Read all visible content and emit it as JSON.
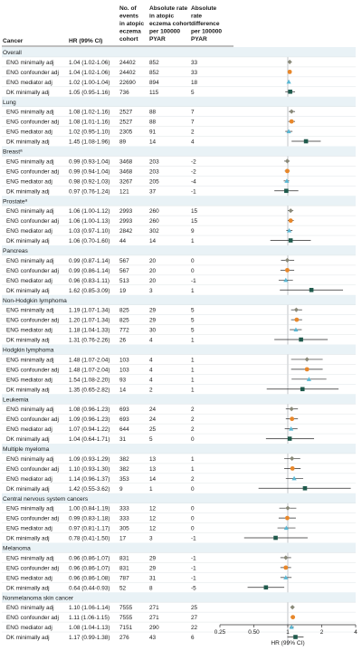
{
  "chart_data": {
    "type": "forest",
    "title": "",
    "xlabel": "HR (99% CI)",
    "x_scale": "log2",
    "xlim": [
      0.25,
      4
    ],
    "x_ticks": [
      "0.25",
      "0.50",
      "1",
      "2",
      "4"
    ],
    "reference_line": 1,
    "columns": {
      "cancer": "Cancer",
      "hr": "HR (99% CI)",
      "events": "No. of events in atopic eczema cohort",
      "rate": "Absolute rate in atopic eczema cohort per 100000 PYAR",
      "diff": "Absolute rate difference per 100000 PYAR"
    },
    "marker_colors": {
      "ENG minimally adj": "#8a8a7a",
      "ENG confounder adj": "#e8872a",
      "ENG mediator adj": "#5ab8d4",
      "DK minimally adj": "#1f5a4c"
    },
    "groups": [
      {
        "name": "Overall",
        "rows": [
          {
            "label": "ENG minimally adj",
            "hr": 1.04,
            "lo": 1.02,
            "hi": 1.06,
            "text": "1.04 (1.02-1.06)",
            "events": "24402",
            "rate": "852",
            "diff": "33"
          },
          {
            "label": "ENG confounder adj",
            "hr": 1.04,
            "lo": 1.02,
            "hi": 1.06,
            "text": "1.04 (1.02-1.06)",
            "events": "24402",
            "rate": "852",
            "diff": "33"
          },
          {
            "label": "ENG mediator adj",
            "hr": 1.02,
            "lo": 1.0,
            "hi": 1.04,
            "text": "1.02 (1.00-1.04)",
            "events": "22690",
            "rate": "894",
            "diff": "18"
          },
          {
            "label": "DK minimally adj",
            "hr": 1.05,
            "lo": 0.95,
            "hi": 1.16,
            "text": "1.05 (0.95-1.16)",
            "events": "736",
            "rate": "115",
            "diff": "5"
          }
        ]
      },
      {
        "name": "Lung",
        "rows": [
          {
            "label": "ENG minimally adj",
            "hr": 1.08,
            "lo": 1.02,
            "hi": 1.16,
            "text": "1.08 (1.02-1.16)",
            "events": "2527",
            "rate": "88",
            "diff": "7"
          },
          {
            "label": "ENG confounder adj",
            "hr": 1.08,
            "lo": 1.01,
            "hi": 1.16,
            "text": "1.08 (1.01-1.16)",
            "events": "2527",
            "rate": "88",
            "diff": "7"
          },
          {
            "label": "ENG mediator adj",
            "hr": 1.02,
            "lo": 0.95,
            "hi": 1.1,
            "text": "1.02 (0.95-1.10)",
            "events": "2305",
            "rate": "91",
            "diff": "2"
          },
          {
            "label": "DK minimally adj",
            "hr": 1.45,
            "lo": 1.08,
            "hi": 1.96,
            "text": "1.45 (1.08-1.96)",
            "events": "89",
            "rate": "14",
            "diff": "4"
          }
        ]
      },
      {
        "name": "Breast",
        "sup": "a",
        "rows": [
          {
            "label": "ENG minimally adj",
            "hr": 0.99,
            "lo": 0.93,
            "hi": 1.04,
            "text": "0.99 (0.93-1.04)",
            "events": "3468",
            "rate": "203",
            "diff": "-2"
          },
          {
            "label": "ENG confounder adj",
            "hr": 0.99,
            "lo": 0.94,
            "hi": 1.04,
            "text": "0.99 (0.94-1.04)",
            "events": "3468",
            "rate": "203",
            "diff": "-2"
          },
          {
            "label": "ENG mediator adj",
            "hr": 0.98,
            "lo": 0.92,
            "hi": 1.03,
            "text": "0.98 (0.92-1.03)",
            "events": "3267",
            "rate": "205",
            "diff": "-4"
          },
          {
            "label": "DK minimally adj",
            "hr": 0.97,
            "lo": 0.76,
            "hi": 1.24,
            "text": "0.97 (0.76-1.24)",
            "events": "121",
            "rate": "37",
            "diff": "-1"
          }
        ]
      },
      {
        "name": "Prostate",
        "sup": "a",
        "rows": [
          {
            "label": "ENG minimally adj",
            "hr": 1.06,
            "lo": 1.0,
            "hi": 1.12,
            "text": "1.06 (1.00-1.12)",
            "events": "2993",
            "rate": "260",
            "diff": "15"
          },
          {
            "label": "ENG confounder adj",
            "hr": 1.06,
            "lo": 1.0,
            "hi": 1.13,
            "text": "1.06 (1.00-1.13)",
            "events": "2993",
            "rate": "260",
            "diff": "15"
          },
          {
            "label": "ENG mediator adj",
            "hr": 1.03,
            "lo": 0.97,
            "hi": 1.1,
            "text": "1.03 (0.97-1.10)",
            "events": "2842",
            "rate": "302",
            "diff": "9"
          },
          {
            "label": "DK minimally adj",
            "hr": 1.06,
            "lo": 0.7,
            "hi": 1.6,
            "text": "1.06 (0.70-1.60)",
            "events": "44",
            "rate": "14",
            "diff": "1"
          }
        ]
      },
      {
        "name": "Pancreas",
        "rows": [
          {
            "label": "ENG minimally adj",
            "hr": 0.99,
            "lo": 0.87,
            "hi": 1.14,
            "text": "0.99 (0.87-1.14)",
            "events": "567",
            "rate": "20",
            "diff": "0"
          },
          {
            "label": "ENG confounder adj",
            "hr": 0.99,
            "lo": 0.86,
            "hi": 1.14,
            "text": "0.99 (0.86-1.14)",
            "events": "567",
            "rate": "20",
            "diff": "0"
          },
          {
            "label": "ENG mediator adj",
            "hr": 0.96,
            "lo": 0.83,
            "hi": 1.11,
            "text": "0.96 (0.83-1.11)",
            "events": "513",
            "rate": "20",
            "diff": "-1"
          },
          {
            "label": "DK minimally adj",
            "hr": 1.62,
            "lo": 0.85,
            "hi": 3.09,
            "text": "1.62 (0.85-3.09)",
            "events": "19",
            "rate": "3",
            "diff": "1"
          }
        ]
      },
      {
        "name": "Non-Hodgkin lymphoma",
        "rows": [
          {
            "label": "ENG minimally adj",
            "hr": 1.19,
            "lo": 1.07,
            "hi": 1.34,
            "text": "1.19 (1.07-1.34)",
            "events": "825",
            "rate": "29",
            "diff": "5"
          },
          {
            "label": "ENG confounder adj",
            "hr": 1.2,
            "lo": 1.07,
            "hi": 1.34,
            "text": "1.20 (1.07-1.34)",
            "events": "825",
            "rate": "29",
            "diff": "5"
          },
          {
            "label": "ENG mediator adj",
            "hr": 1.18,
            "lo": 1.04,
            "hi": 1.33,
            "text": "1.18 (1.04-1.33)",
            "events": "772",
            "rate": "30",
            "diff": "5"
          },
          {
            "label": "DK minimally adj",
            "hr": 1.31,
            "lo": 0.76,
            "hi": 2.26,
            "text": "1.31 (0.76-2.26)",
            "events": "26",
            "rate": "4",
            "diff": "1"
          }
        ]
      },
      {
        "name": "Hodgkin lymphoma",
        "rows": [
          {
            "label": "ENG minimally adj",
            "hr": 1.48,
            "lo": 1.07,
            "hi": 2.04,
            "text": "1.48 (1.07-2.04)",
            "events": "103",
            "rate": "4",
            "diff": "1"
          },
          {
            "label": "ENG confounder adj",
            "hr": 1.48,
            "lo": 1.07,
            "hi": 2.04,
            "text": "1.48 (1.07-2.04)",
            "events": "103",
            "rate": "4",
            "diff": "1"
          },
          {
            "label": "ENG mediator adj",
            "hr": 1.54,
            "lo": 1.08,
            "hi": 2.2,
            "text": "1.54 (1.08-2.20)",
            "events": "93",
            "rate": "4",
            "diff": "1"
          },
          {
            "label": "DK minimally adj",
            "hr": 1.35,
            "lo": 0.65,
            "hi": 2.82,
            "text": "1.35 (0.65-2.82)",
            "events": "14",
            "rate": "2",
            "diff": "1"
          }
        ]
      },
      {
        "name": "Leukemia",
        "rows": [
          {
            "label": "ENG minimally adj",
            "hr": 1.08,
            "lo": 0.96,
            "hi": 1.23,
            "text": "1.08 (0.96-1.23)",
            "events": "693",
            "rate": "24",
            "diff": "2"
          },
          {
            "label": "ENG confounder adj",
            "hr": 1.09,
            "lo": 0.96,
            "hi": 1.23,
            "text": "1.09 (0.96-1.23)",
            "events": "693",
            "rate": "24",
            "diff": "2"
          },
          {
            "label": "ENG mediator adj",
            "hr": 1.07,
            "lo": 0.94,
            "hi": 1.22,
            "text": "1.07 (0.94-1.22)",
            "events": "644",
            "rate": "25",
            "diff": "2"
          },
          {
            "label": "DK minimally adj",
            "hr": 1.04,
            "lo": 0.64,
            "hi": 1.71,
            "text": "1.04 (0.64-1.71)",
            "events": "31",
            "rate": "5",
            "diff": "0"
          }
        ]
      },
      {
        "name": "Multiple myeloma",
        "rows": [
          {
            "label": "ENG minimally adj",
            "hr": 1.09,
            "lo": 0.93,
            "hi": 1.29,
            "text": "1.09 (0.93-1.29)",
            "events": "382",
            "rate": "13",
            "diff": "1"
          },
          {
            "label": "ENG confounder adj",
            "hr": 1.1,
            "lo": 0.93,
            "hi": 1.3,
            "text": "1.10 (0.93-1.30)",
            "events": "382",
            "rate": "13",
            "diff": "1"
          },
          {
            "label": "ENG mediator adj",
            "hr": 1.14,
            "lo": 0.96,
            "hi": 1.37,
            "text": "1.14 (0.96-1.37)",
            "events": "353",
            "rate": "14",
            "diff": "2"
          },
          {
            "label": "DK minimally adj",
            "hr": 1.42,
            "lo": 0.55,
            "hi": 3.62,
            "text": "1.42 (0.55-3.62)",
            "events": "9",
            "rate": "1",
            "diff": "0"
          }
        ]
      },
      {
        "name": "Central nervous system cancers",
        "rows": [
          {
            "label": "ENG minimally adj",
            "hr": 1.0,
            "lo": 0.84,
            "hi": 1.19,
            "text": "1.00 (0.84-1.19)",
            "events": "333",
            "rate": "12",
            "diff": "0"
          },
          {
            "label": "ENG confounder adj",
            "hr": 0.99,
            "lo": 0.83,
            "hi": 1.18,
            "text": "0.99 (0.83-1.18)",
            "events": "333",
            "rate": "12",
            "diff": "0"
          },
          {
            "label": "ENG mediator adj",
            "hr": 0.97,
            "lo": 0.81,
            "hi": 1.17,
            "text": "0.97 (0.81-1.17)",
            "events": "305",
            "rate": "12",
            "diff": "0"
          },
          {
            "label": "DK minimally adj",
            "hr": 0.78,
            "lo": 0.41,
            "hi": 1.5,
            "text": "0.78 (0.41-1.50)",
            "events": "17",
            "rate": "3",
            "diff": "-1"
          }
        ]
      },
      {
        "name": "Melanoma",
        "rows": [
          {
            "label": "ENG minimally adj",
            "hr": 0.96,
            "lo": 0.86,
            "hi": 1.07,
            "text": "0.96 (0.86-1.07)",
            "events": "831",
            "rate": "29",
            "diff": "-1"
          },
          {
            "label": "ENG confounder adj",
            "hr": 0.96,
            "lo": 0.86,
            "hi": 1.07,
            "text": "0.96 (0.86-1.07)",
            "events": "831",
            "rate": "29",
            "diff": "-1"
          },
          {
            "label": "ENG mediator adj",
            "hr": 0.96,
            "lo": 0.86,
            "hi": 1.08,
            "text": "0.96 (0.86-1.08)",
            "events": "787",
            "rate": "31",
            "diff": "-1"
          },
          {
            "label": "DK minimally adj",
            "hr": 0.64,
            "lo": 0.44,
            "hi": 0.93,
            "text": "0.64 (0.44-0.93)",
            "events": "52",
            "rate": "8",
            "diff": "-5"
          }
        ]
      },
      {
        "name": "Nonmelanoma skin cancer",
        "rows": [
          {
            "label": "ENG minimally adj",
            "hr": 1.1,
            "lo": 1.06,
            "hi": 1.14,
            "text": "1.10 (1.06-1.14)",
            "events": "7555",
            "rate": "271",
            "diff": "25"
          },
          {
            "label": "ENG confounder adj",
            "hr": 1.11,
            "lo": 1.06,
            "hi": 1.15,
            "text": "1.11 (1.06-1.15)",
            "events": "7555",
            "rate": "271",
            "diff": "27"
          },
          {
            "label": "ENG mediator adj",
            "hr": 1.08,
            "lo": 1.04,
            "hi": 1.13,
            "text": "1.08 (1.04-1.13)",
            "events": "7151",
            "rate": "290",
            "diff": "22"
          },
          {
            "label": "DK minimally adj",
            "hr": 1.17,
            "lo": 0.99,
            "hi": 1.38,
            "text": "1.17 (0.99-1.38)",
            "events": "276",
            "rate": "43",
            "diff": "6"
          }
        ]
      }
    ]
  }
}
